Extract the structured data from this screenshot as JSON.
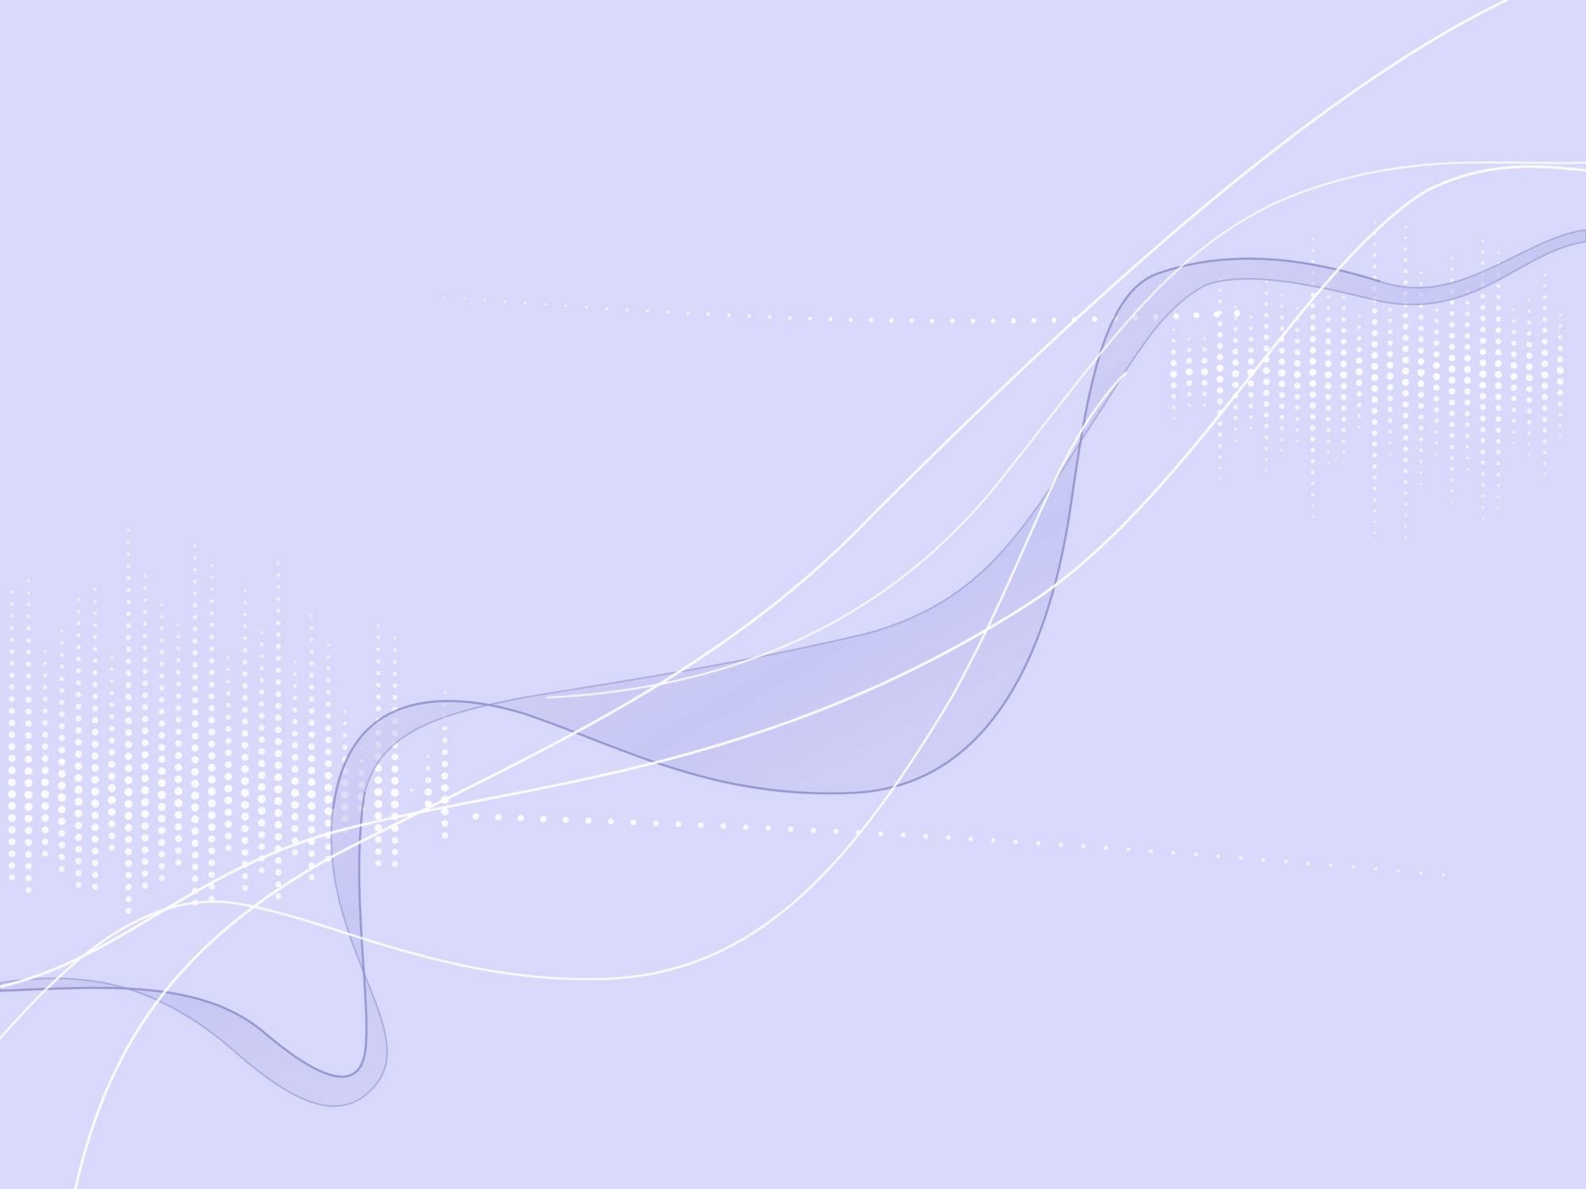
{
  "background": {
    "color": "#d8d8fa",
    "ribbon_color": "#b9b9ee",
    "ribbon_edge_color": "#8e8ec8",
    "dot_color": "#ffffff",
    "line_color": "#ffffff"
  },
  "content_text": []
}
